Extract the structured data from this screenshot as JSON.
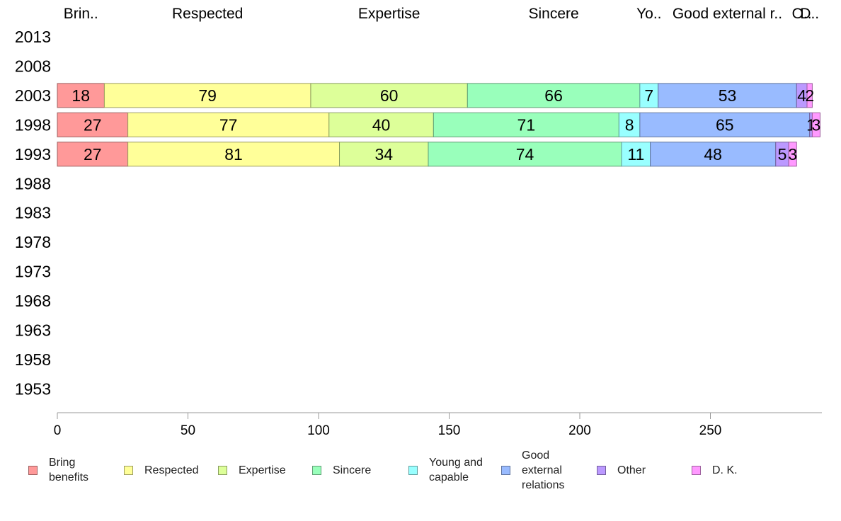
{
  "chart_data": {
    "type": "bar",
    "orientation": "horizontal",
    "stacked": true,
    "categories": [
      "2013",
      "2008",
      "2003",
      "1998",
      "1993",
      "1988",
      "1983",
      "1978",
      "1973",
      "1968",
      "1963",
      "1958",
      "1953"
    ],
    "series": [
      {
        "name": "Bring benefits",
        "column_label": "Brin..",
        "color": "#ff9999",
        "values": [
          null,
          null,
          18,
          27,
          27,
          null,
          null,
          null,
          null,
          null,
          null,
          null,
          null
        ]
      },
      {
        "name": "Respected",
        "column_label": "Respected",
        "color": "#ffff99",
        "values": [
          null,
          null,
          79,
          77,
          81,
          null,
          null,
          null,
          null,
          null,
          null,
          null,
          null
        ]
      },
      {
        "name": "Expertise",
        "column_label": "Expertise",
        "color": "#ddff99",
        "values": [
          null,
          null,
          60,
          40,
          34,
          null,
          null,
          null,
          null,
          null,
          null,
          null,
          null
        ]
      },
      {
        "name": "Sincere",
        "column_label": "Sincere",
        "color": "#99ffbb",
        "values": [
          null,
          null,
          66,
          71,
          74,
          null,
          null,
          null,
          null,
          null,
          null,
          null,
          null
        ]
      },
      {
        "name": "Young and capable",
        "column_label": "Yo..",
        "color": "#99ffff",
        "values": [
          null,
          null,
          7,
          8,
          11,
          null,
          null,
          null,
          null,
          null,
          null,
          null,
          null
        ]
      },
      {
        "name": "Good external relations",
        "column_label": "Good external r..",
        "color": "#99bbff",
        "values": [
          null,
          null,
          53,
          65,
          48,
          null,
          null,
          null,
          null,
          null,
          null,
          null,
          null
        ]
      },
      {
        "name": "Other",
        "column_label": "O..",
        "color": "#bb99ff",
        "values": [
          null,
          null,
          4,
          1,
          5,
          null,
          null,
          null,
          null,
          null,
          null,
          null,
          null
        ]
      },
      {
        "name": "D. K.",
        "column_label": "D..",
        "color": "#ff99ff",
        "values": [
          null,
          null,
          2,
          3,
          3,
          null,
          null,
          null,
          null,
          null,
          null,
          null,
          null
        ]
      }
    ],
    "x_ticks": [
      0,
      50,
      100,
      150,
      200,
      250
    ],
    "xlim": [
      0,
      290
    ],
    "xlabel": "",
    "ylabel": "",
    "grid": false,
    "legend_position": "bottom"
  },
  "legend": {
    "items": [
      {
        "label": "Bring\nbenefits",
        "color": "#ff9999"
      },
      {
        "label": "Respected",
        "color": "#ffff99"
      },
      {
        "label": "Expertise",
        "color": "#ddff99"
      },
      {
        "label": "Sincere",
        "color": "#99ffbb"
      },
      {
        "label": "Young and\ncapable",
        "color": "#99ffff"
      },
      {
        "label": "Good\nexternal\nrelations",
        "color": "#99bbff"
      },
      {
        "label": "Other",
        "color": "#bb99ff"
      },
      {
        "label": "D. K.",
        "color": "#ff99ff"
      }
    ]
  }
}
